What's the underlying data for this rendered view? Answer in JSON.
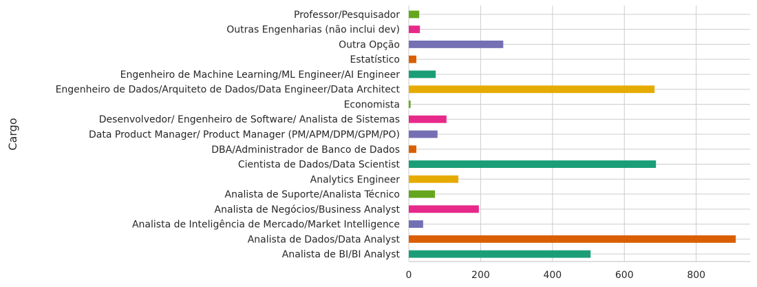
{
  "chart_data": {
    "type": "bar",
    "orientation": "horizontal",
    "title": "",
    "xlabel": "",
    "ylabel": "Cargo",
    "xlim": [
      0,
      950
    ],
    "xticks": [
      0,
      200,
      400,
      600,
      800
    ],
    "grid": true,
    "categories": [
      "Analista de BI/BI Analyst",
      "Analista de Dados/Data Analyst",
      "Analista de Inteligência de Mercado/Market Intelligence",
      "Analista de Negócios/Business Analyst",
      "Analista de Suporte/Analista Técnico",
      "Analytics Engineer",
      "Cientista de Dados/Data Scientist",
      "DBA/Administrador de Banco de Dados",
      "Data Product Manager/ Product Manager (PM/APM/DPM/GPM/PO)",
      "Desenvolvedor/ Engenheiro de Software/ Analista de Sistemas",
      "Economista",
      "Engenheiro de Dados/Arquiteto de Dados/Data Engineer/Data Architect",
      "Engenheiro de Machine Learning/ML Engineer/AI Engineer",
      "Estatístico",
      "Outra Opção",
      "Outras Engenharias (não inclui dev)",
      "Professor/Pesquisador"
    ],
    "values": [
      506,
      910,
      40,
      195,
      73,
      138,
      688,
      21,
      80,
      105,
      5,
      684,
      75,
      21,
      263,
      31,
      29
    ],
    "colors": [
      "#1b9e77",
      "#d95f02",
      "#7570b3",
      "#e7298a",
      "#66a61e",
      "#e6ab02",
      "#1b9e77",
      "#d95f02",
      "#7570b3",
      "#e7298a",
      "#66a61e",
      "#e6ab02",
      "#1b9e77",
      "#d95f02",
      "#7570b3",
      "#e7298a",
      "#66a61e"
    ]
  }
}
